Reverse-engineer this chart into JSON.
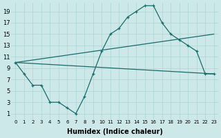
{
  "xlabel": "Humidex (Indice chaleur)",
  "bg_color": "#cce8e8",
  "line_color": "#1a6b6b",
  "grid_color": "#aad4d4",
  "xlim": [
    -0.5,
    23.5
  ],
  "ylim": [
    0,
    20.5
  ],
  "xticks": [
    0,
    1,
    2,
    3,
    4,
    5,
    6,
    7,
    8,
    9,
    10,
    11,
    12,
    13,
    14,
    15,
    16,
    17,
    18,
    19,
    20,
    21,
    22,
    23
  ],
  "yticks": [
    1,
    3,
    5,
    7,
    9,
    11,
    13,
    15,
    17,
    19
  ],
  "line1_x": [
    0,
    1,
    2,
    3,
    4,
    5,
    6,
    7,
    8,
    9,
    10,
    11,
    12,
    13,
    14,
    15,
    16,
    17,
    18,
    19,
    20,
    21,
    22,
    23
  ],
  "line1_y": [
    10,
    8,
    6,
    6,
    3,
    3,
    2,
    1,
    4,
    8,
    12,
    15,
    16,
    18,
    19,
    20,
    20,
    17,
    15,
    14,
    13,
    12,
    8,
    8
  ],
  "line2_x": [
    0,
    23
  ],
  "line2_y": [
    10,
    15
  ],
  "line3_x": [
    0,
    23
  ],
  "line3_y": [
    10,
    8
  ],
  "xtick_fontsize": 5,
  "ytick_fontsize": 6,
  "xlabel_fontsize": 7
}
